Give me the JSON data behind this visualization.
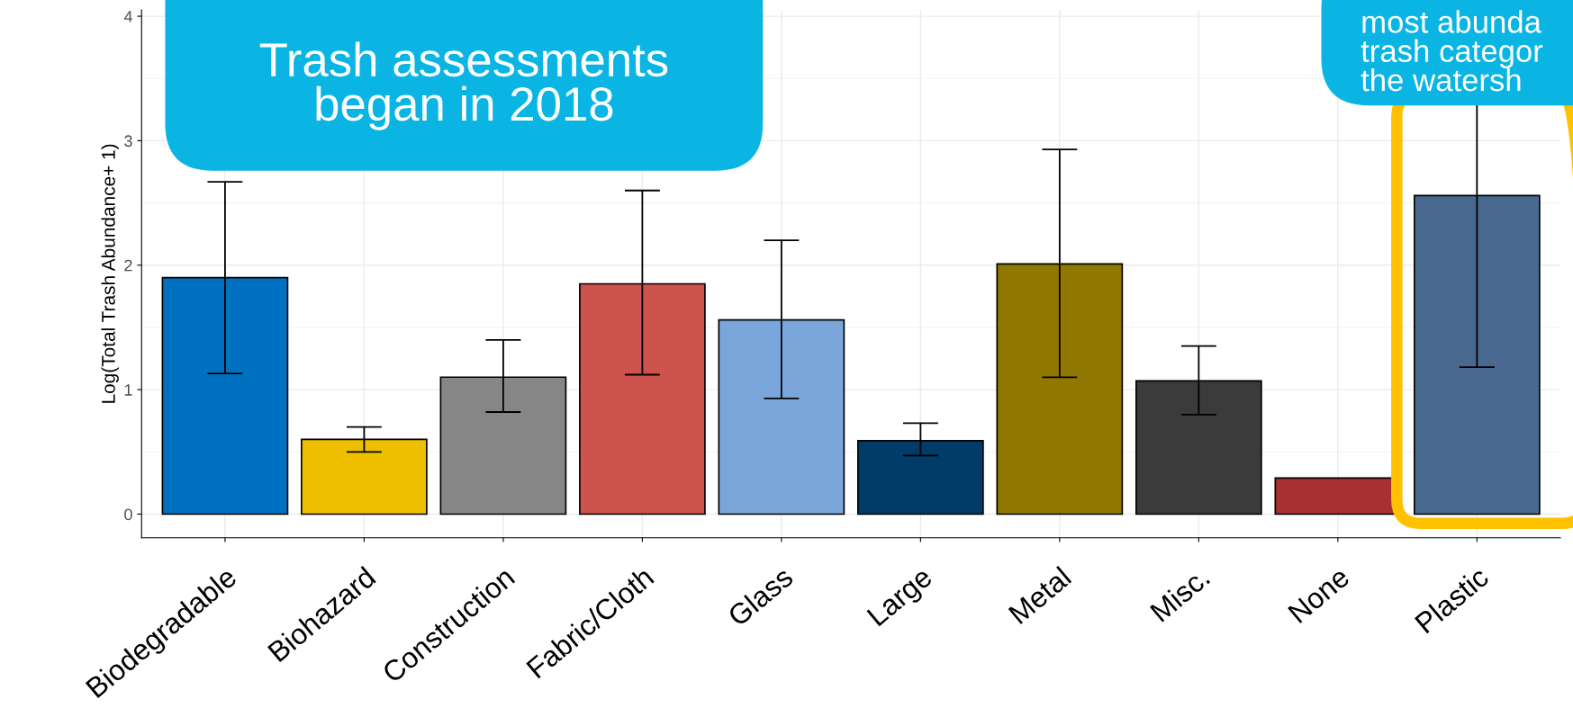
{
  "chart_data": {
    "type": "bar",
    "categories": [
      "Biodegradable",
      "Biohazard",
      "Construction",
      "Fabric/Cloth",
      "Glass",
      "Large",
      "Metal",
      "Misc.",
      "None",
      "Plastic"
    ],
    "values": [
      1.9,
      0.6,
      1.1,
      1.85,
      1.56,
      0.59,
      2.01,
      1.07,
      0.29,
      2.56
    ],
    "colors": [
      "#0070c0",
      "#efc000",
      "#868686",
      "#cd534c",
      "#7aa6dc",
      "#003c67",
      "#8f7700",
      "#3b3b3b",
      "#a73030",
      "#4a6990"
    ],
    "errors": [
      [
        1.13,
        2.67
      ],
      [
        0.5,
        0.7
      ],
      [
        0.82,
        1.4
      ],
      [
        1.12,
        2.6
      ],
      [
        0.93,
        2.2
      ],
      [
        0.47,
        0.73
      ],
      [
        1.1,
        2.93
      ],
      [
        0.8,
        1.35
      ],
      null,
      [
        1.18,
        3.94
      ]
    ],
    "ylabel": "Log(Total Trash Abundance+ 1)",
    "ylim": [
      -0.19,
      4.05
    ],
    "yticks": [
      0,
      1,
      2,
      3,
      4
    ],
    "grid": true,
    "annotations": [
      "Trash assessments\nbegan in 2018",
      "most abunda\ntrash categor\nthe watersh"
    ]
  }
}
